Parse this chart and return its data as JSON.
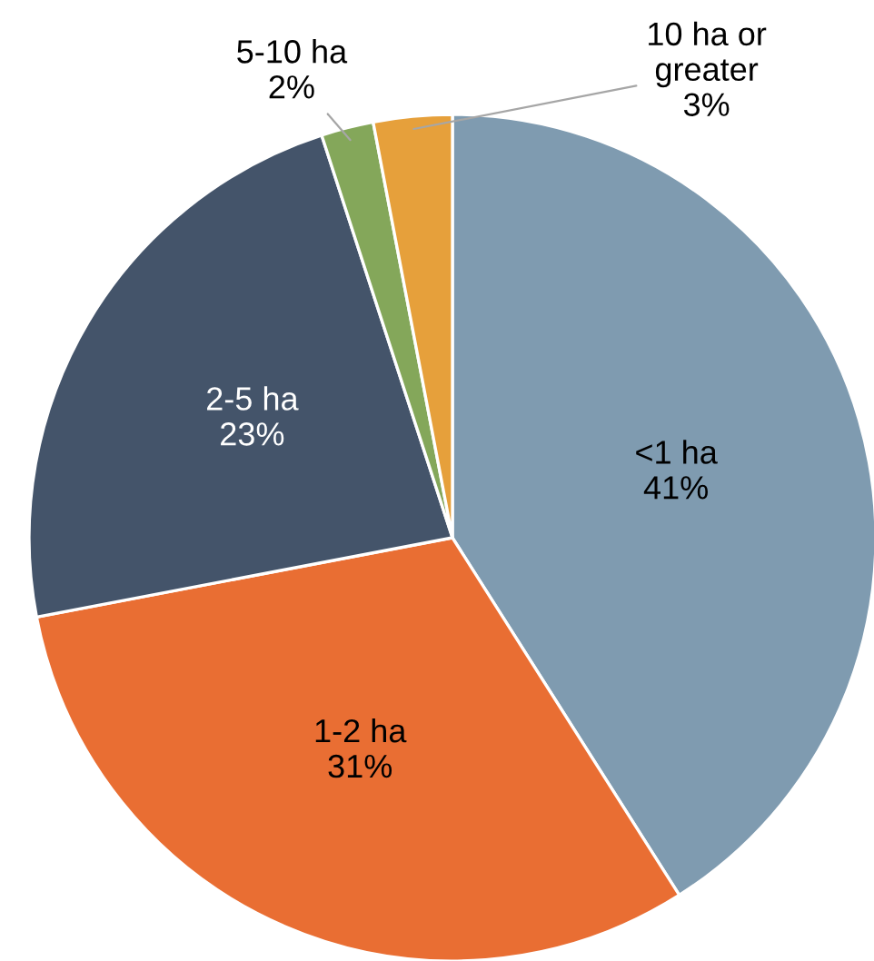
{
  "chart_data": {
    "type": "pie",
    "categories": [
      "<1 ha",
      "1-2 ha",
      "2-5 ha",
      "5-10 ha",
      "10 ha or\ngreater"
    ],
    "values": [
      41,
      31,
      23,
      2,
      3
    ],
    "value_labels": [
      "41%",
      "31%",
      "23%",
      "2%",
      "3%"
    ],
    "colors": [
      "#7f9bb0",
      "#e96e33",
      "#44546a",
      "#84a75a",
      "#e6a03b"
    ],
    "legend": false
  }
}
